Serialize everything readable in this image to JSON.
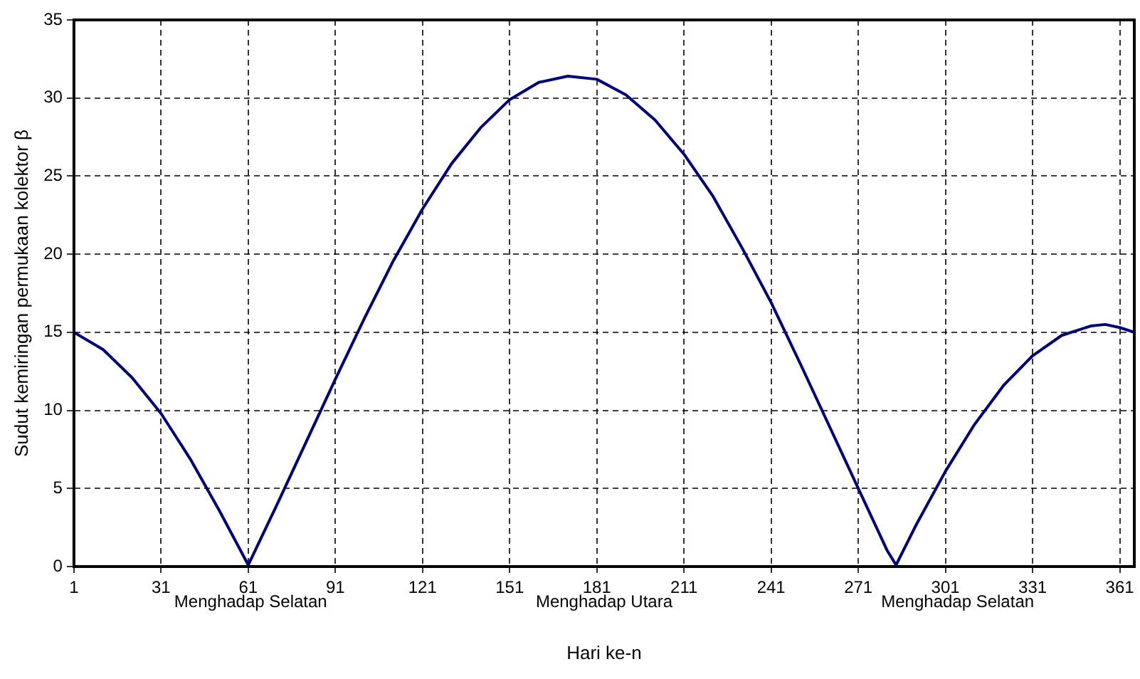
{
  "chart_data": {
    "type": "line",
    "xlabel": "Hari ke-n",
    "ylabel": "Sudut kemiringan permukaan kolektor β",
    "x": [
      1,
      11,
      21,
      31,
      41,
      51,
      61,
      71,
      81,
      91,
      101,
      111,
      121,
      131,
      141,
      151,
      161,
      171,
      181,
      191,
      201,
      211,
      221,
      231,
      241,
      251,
      261,
      271,
      281,
      284,
      291,
      301,
      311,
      321,
      331,
      341,
      351,
      356,
      361,
      366
    ],
    "series": [
      {
        "color": "#000080",
        "values": [
          15.0,
          13.9,
          12.1,
          9.8,
          6.9,
          3.6,
          0.1,
          4.0,
          8.0,
          12.0,
          15.9,
          19.6,
          22.9,
          25.8,
          28.1,
          29.9,
          31.0,
          31.4,
          31.2,
          30.2,
          28.6,
          26.4,
          23.7,
          20.4,
          16.9,
          13.0,
          9.0,
          5.0,
          1.0,
          0.1,
          2.7,
          6.1,
          9.1,
          11.6,
          13.5,
          14.8,
          15.4,
          15.5,
          15.3,
          15.0
        ]
      }
    ],
    "xlim": [
      1,
      366
    ],
    "xticks": [
      1,
      31,
      61,
      91,
      121,
      151,
      181,
      211,
      241,
      271,
      301,
      331,
      361
    ],
    "ylim": [
      0,
      35
    ],
    "yticks": [
      0,
      5,
      10,
      15,
      20,
      25,
      30,
      35
    ],
    "grid": true,
    "legend": false,
    "marker": "none",
    "line_style": "solid",
    "annotations": [
      "Menghadap Selatan",
      "Menghadap Utara",
      "Menghadap Selatan"
    ]
  }
}
